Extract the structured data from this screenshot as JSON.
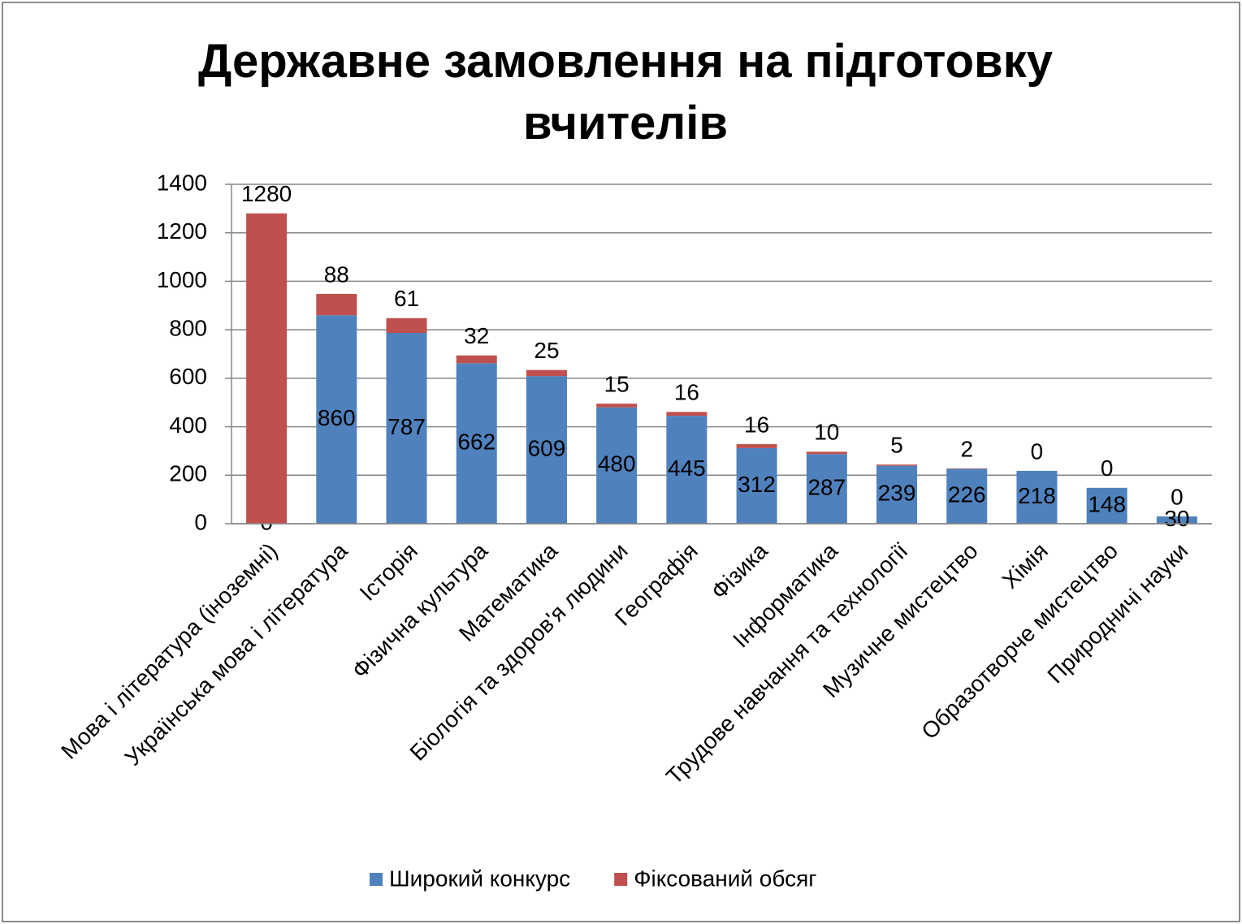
{
  "chart_data": {
    "type": "stacked-bar",
    "title": "Державне замовлення на підготовку вчителів",
    "categories": [
      "Мова і література (іноземні)",
      "Українська мова і література",
      "Історія",
      "Фізична культура",
      "Математика",
      "Біологія та здоров'я людини",
      "Географія",
      "Фізика",
      "Інформатика",
      "Трудове навчання та технології",
      "Музичне мистецтво",
      "Хімія",
      "Образотворче мистецтво",
      "Природничі науки"
    ],
    "series": [
      {
        "name": "Широкий конкурс",
        "color": "#4f81bd",
        "values": [
          0,
          860,
          787,
          662,
          609,
          480,
          445,
          312,
          287,
          239,
          226,
          218,
          148,
          30
        ]
      },
      {
        "name": "Фіксований обсяг",
        "color": "#c0504d",
        "values": [
          1280,
          88,
          61,
          32,
          25,
          15,
          16,
          16,
          10,
          5,
          2,
          0,
          0,
          0
        ]
      }
    ],
    "ylim": [
      0,
      1400
    ],
    "yticks": [
      0,
      200,
      400,
      600,
      800,
      1000,
      1200,
      1400
    ],
    "grid": true,
    "legend": "bottom"
  }
}
